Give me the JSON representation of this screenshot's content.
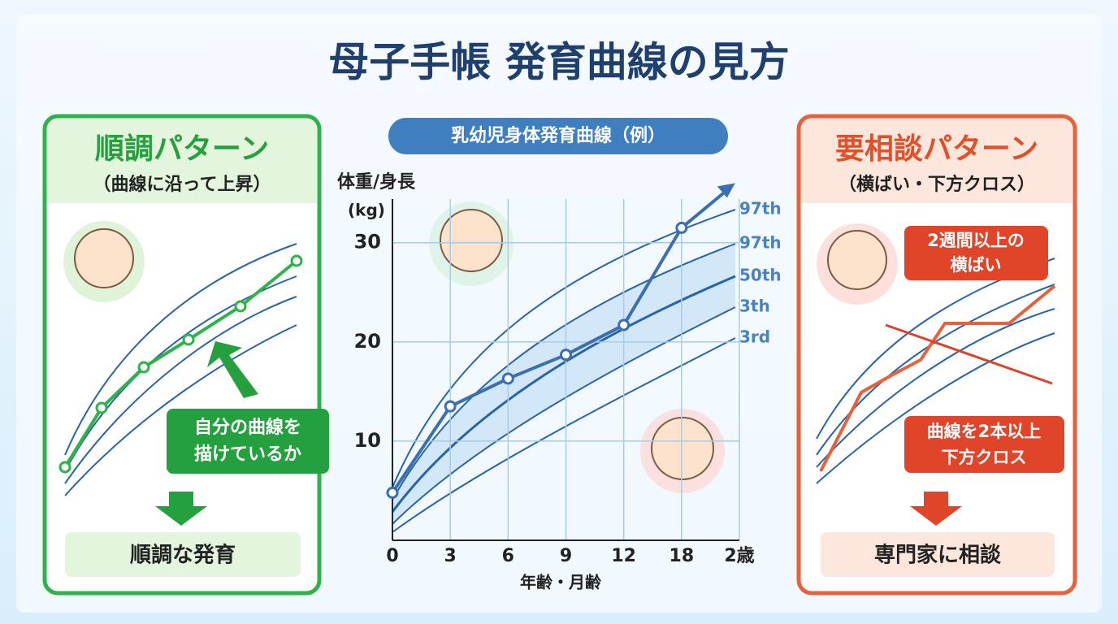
{
  "title": "母子手帳 発育曲線の見方",
  "left": {
    "heading": "順調パターン",
    "subheading": "（曲線に沿って上昇）",
    "callout": [
      "自分の曲線を",
      "描けているか"
    ],
    "result": "順調な発育"
  },
  "right": {
    "heading": "要相談パターン",
    "subheading": "（横ばい・下方クロス）",
    "callout_top": [
      "2週間以上の",
      "横ばい"
    ],
    "callout_bottom": [
      "曲線を2本以上",
      "下方クロス"
    ],
    "result": "専門家に相談"
  },
  "chart_data": {
    "type": "line",
    "title": "乳幼児身体発育曲線（例）",
    "y_label": [
      "体重/身長",
      "(kg)"
    ],
    "x_label": "年齢・月齢",
    "categories": [
      "0",
      "3",
      "6",
      "9",
      "12",
      "18",
      "2歳"
    ],
    "values": [
      4.8,
      13.5,
      16.3,
      18.7,
      21.7,
      31.5,
      null
    ],
    "color": "#3a6fb0",
    "ylim": [
      0,
      34.4
    ],
    "yticks": [
      10,
      20,
      30
    ],
    "grid": true,
    "curve_labels": [
      "97th",
      "97th",
      "50th",
      "3th",
      "3rd"
    ]
  }
}
